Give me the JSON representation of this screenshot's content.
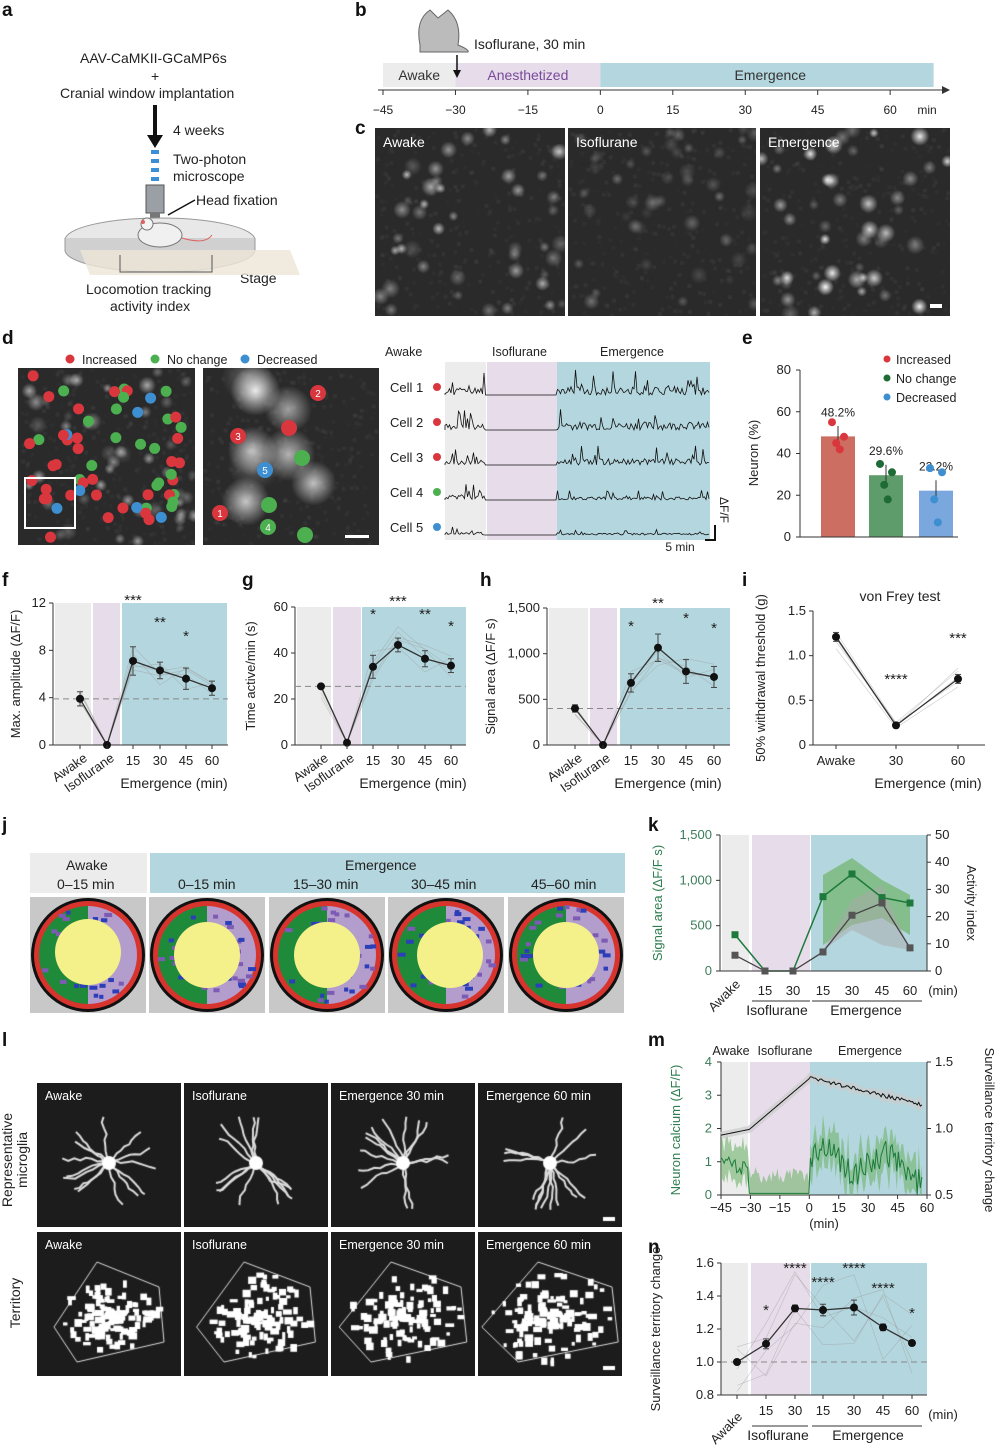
{
  "panel_labels": {
    "a": "a",
    "b": "b",
    "c": "c",
    "d": "d",
    "e": "e",
    "f": "f",
    "g": "g",
    "h": "h",
    "i": "i",
    "j": "j",
    "k": "k",
    "l": "l",
    "m": "m",
    "n": "n"
  },
  "a": {
    "line1": "AAV-CaMKII-GCaMP6s",
    "plus": "+",
    "line2": "Cranial window implantation",
    "weeks": "4 weeks",
    "microscope1": "Two-photon",
    "microscope2": "microscope",
    "head": "Head fixation",
    "stage": "Stage",
    "loco1": "Locomotion tracking",
    "loco2": "activity index"
  },
  "b": {
    "drug": "Isoflurane, 30 min",
    "phases": [
      "Awake",
      "Anesthetized",
      "Emergence"
    ],
    "ticks": [
      "−45",
      "−30",
      "−15",
      "0",
      "15",
      "30",
      "45",
      "60"
    ],
    "unit": "min"
  },
  "c": {
    "labels": [
      "Awake",
      "Isoflurane",
      "Emergence"
    ]
  },
  "d": {
    "legend": [
      "Increased",
      "No change",
      "Decreased"
    ],
    "trace_header": [
      "Awake",
      "Isoflurane",
      "Emergence"
    ],
    "cells": [
      "Cell 1",
      "Cell 2",
      "Cell 3",
      "Cell 4",
      "Cell 5"
    ],
    "cell_class": [
      "increased",
      "increased",
      "increased",
      "no-change",
      "decreased"
    ],
    "roi_numbers": [
      "1",
      "2",
      "3",
      "4",
      "5"
    ],
    "scale_y": "ΔF/F",
    "scale_x": "5 min"
  },
  "colors": {
    "increased": "#d9363e",
    "no_change": "#4caf50",
    "decreased": "#3d8fd1",
    "awake_bg": "#ececec",
    "iso_bg": "#e6dcea",
    "emergence_bg": "#b4d6de",
    "green": "#1e7a3c",
    "gray_series": "#555555"
  },
  "j": {
    "header_awake": "Awake",
    "header_emergence": "Emergence",
    "windows": [
      "0–15 min",
      "0–15 min",
      "15–30 min",
      "30–45 min",
      "45–60 min"
    ]
  },
  "l": {
    "row_labels": [
      "Representative microglia",
      "Territory"
    ],
    "columns": [
      "Awake",
      "Isoflurane",
      "Emergence 30 min",
      "Emergence 60 min"
    ]
  },
  "chart_data": [
    {
      "id": "e",
      "type": "bar",
      "categories": [
        "Increased",
        "No change",
        "Decreased"
      ],
      "values": [
        48.2,
        29.6,
        22.2
      ],
      "value_labels": [
        "48.2%",
        "29.6%",
        "22.2%"
      ],
      "ylabel": "Neuron (%)",
      "ylim": [
        0,
        80
      ],
      "yticks": [
        "0",
        "20",
        "40",
        "60",
        "80"
      ],
      "points": [
        [
          55,
          48,
          45,
          42
        ],
        [
          35,
          31,
          25,
          18
        ],
        [
          33,
          31,
          18,
          7
        ]
      ],
      "legend": "top-right"
    },
    {
      "id": "f",
      "type": "line",
      "categories": [
        "Awake",
        "Isoflurane",
        "15",
        "30",
        "45",
        "60"
      ],
      "values": [
        3.9,
        0,
        7.1,
        6.3,
        5.6,
        4.8
      ],
      "errors": [
        0.6,
        0,
        1.2,
        0.7,
        0.9,
        0.6
      ],
      "baseline": 3.9,
      "ylabel": "Max. amplitude (ΔF/F)",
      "xlabel": "Emergence (min)",
      "ylim": [
        0,
        12
      ],
      "yticks": [
        "0",
        "4",
        "8",
        "12"
      ],
      "significance": [
        "",
        "",
        "***",
        "**",
        "*",
        ""
      ]
    },
    {
      "id": "g",
      "type": "line",
      "categories": [
        "Awake",
        "Isoflurane",
        "15",
        "30",
        "45",
        "60"
      ],
      "values": [
        25.5,
        1,
        34,
        43.5,
        37.5,
        34.5
      ],
      "errors": [
        0,
        0,
        5,
        3,
        3.5,
        3
      ],
      "baseline": 25.5,
      "ylabel": "Time active/min (s)",
      "xlabel": "Emergence (min)",
      "ylim": [
        0,
        60
      ],
      "yticks": [
        "0",
        "20",
        "40",
        "60"
      ],
      "significance": [
        "",
        "",
        "*",
        "***",
        "**",
        "*"
      ]
    },
    {
      "id": "h",
      "type": "line",
      "categories": [
        "Awake",
        "Isoflurane",
        "15",
        "30",
        "45",
        "60"
      ],
      "values": [
        400,
        0,
        680,
        1065,
        805,
        745
      ],
      "errors": [
        40,
        0,
        100,
        150,
        130,
        115
      ],
      "baseline": 400,
      "ylabel": "Signal area (ΔF/F s)",
      "xlabel": "Emergence (min)",
      "ylim": [
        0,
        1500
      ],
      "yticks": [
        "0",
        "500",
        "1,000",
        "1,500"
      ],
      "significance": [
        "",
        "",
        "*",
        "**",
        "*",
        "*"
      ]
    },
    {
      "id": "i",
      "type": "line",
      "title": "von Frey test",
      "categories": [
        "Awake",
        "30",
        "60"
      ],
      "values": [
        1.21,
        0.22,
        0.74
      ],
      "errors": [
        0.05,
        0.03,
        0.05
      ],
      "ylabel": "50% withdrawal threshold (g)",
      "xlabel": "Emergence (min)",
      "ylim": [
        0,
        1.5
      ],
      "yticks": [
        "0",
        "0.5",
        "1.0",
        "1.5"
      ],
      "significance": [
        "",
        "****",
        "***"
      ]
    },
    {
      "id": "k",
      "type": "line",
      "categories": [
        "Awake",
        "15",
        "30",
        "15",
        "30",
        "45",
        "60"
      ],
      "group_labels": [
        "Isoflurane",
        "Emergence"
      ],
      "unit": "(min)",
      "series": [
        {
          "name": "Signal area",
          "axis": "left",
          "values": [
            400,
            0,
            0,
            820,
            1070,
            810,
            750
          ]
        },
        {
          "name": "Activity index",
          "axis": "right",
          "values": [
            5.8,
            0,
            0,
            7,
            20.5,
            25,
            8.5
          ]
        }
      ],
      "ylabel": "Signal area (ΔF/F s)",
      "ylabel_right": "Activity index",
      "ylim": [
        0,
        1500
      ],
      "ylim_right": [
        0,
        50
      ],
      "yticks": [
        "0",
        "500",
        "1,000",
        "1,500"
      ],
      "yticks_right": [
        "0",
        "10",
        "20",
        "30",
        "40",
        "50"
      ]
    },
    {
      "id": "m",
      "type": "line",
      "phases": [
        "Awake",
        "Isoflurane",
        "Emergence"
      ],
      "xlabel": "(min)",
      "xticks": [
        "−45",
        "−30",
        "−15",
        "0",
        "15",
        "30",
        "45",
        "60"
      ],
      "xlim": [
        -45,
        60
      ],
      "ylabel": "Neuron calcium (ΔF/F)",
      "ylabel_right": "Surveillance territory change",
      "ylim": [
        0,
        4
      ],
      "ylim_right": [
        0.5,
        1.5
      ],
      "yticks": [
        "0",
        "1",
        "2",
        "3",
        "4"
      ],
      "yticks_right": [
        "0.5",
        "1.0",
        "1.5"
      ]
    },
    {
      "id": "n",
      "type": "line",
      "categories": [
        "Awake",
        "15",
        "30",
        "15",
        "30",
        "45",
        "60"
      ],
      "group_labels": [
        "Isoflurane",
        "Emergence"
      ],
      "unit": "(min)",
      "values": [
        1.0,
        1.11,
        1.325,
        1.315,
        1.33,
        1.21,
        1.115
      ],
      "errors": [
        0,
        0.03,
        0.02,
        0.035,
        0.045,
        0.02,
        0.015
      ],
      "baseline": 1.0,
      "ylabel": "Surveillance territory change",
      "ylim": [
        0.8,
        1.6
      ],
      "yticks": [
        "0.8",
        "1.0",
        "1.2",
        "1.4",
        "1.6"
      ],
      "significance": [
        "",
        "*",
        "****",
        "****",
        "****",
        "****",
        "*"
      ]
    }
  ]
}
